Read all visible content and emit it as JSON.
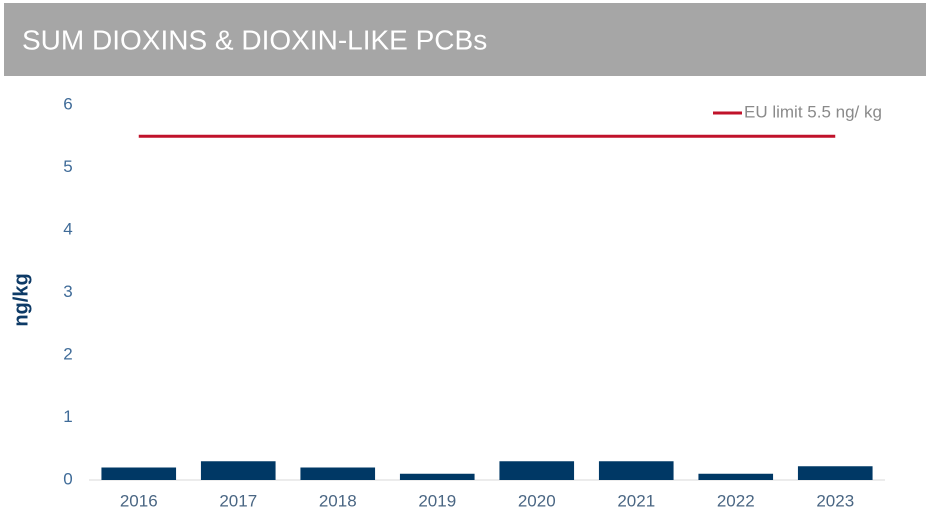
{
  "chart_data": {
    "type": "bar",
    "title": "SUM DIOXINS & DIOXIN-LIKE PCBs",
    "y_label": "ng/kg",
    "categories": [
      "2016",
      "2017",
      "2018",
      "2019",
      "2020",
      "2021",
      "2022",
      "2023"
    ],
    "series": [
      {
        "color": "#003865",
        "values": [
          0.2,
          0.3,
          0.2,
          0.1,
          0.3,
          0.3,
          0.1,
          0.22
        ]
      }
    ],
    "reference_line": {
      "name": "EU limit 5.5 ng/ kg",
      "value": 5.5,
      "color": "#c0122a"
    },
    "ylim": [
      0,
      6
    ],
    "yticks": [
      0,
      1,
      2,
      3,
      4,
      5,
      6
    ],
    "grid": false,
    "legend": "upper right"
  }
}
